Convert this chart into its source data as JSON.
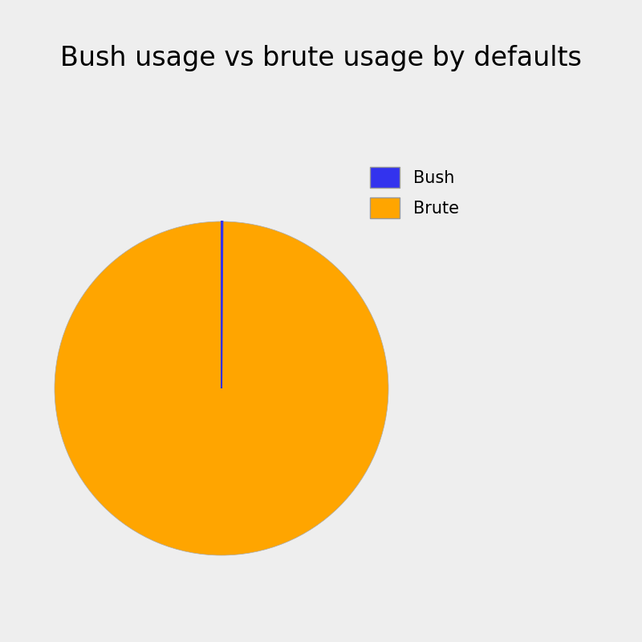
{
  "title": "Bush usage vs brute usage by defaults",
  "title_fontsize": 24,
  "slices": [
    "Brute",
    "Bush"
  ],
  "values": [
    99.9,
    0.1
  ],
  "colors": [
    "#FFA500",
    "#3333EE"
  ],
  "background_color": "#EEEEEE",
  "legend_labels": [
    "Bush",
    "Brute"
  ],
  "legend_colors": [
    "#3333EE",
    "#FFA500"
  ],
  "wedge_edgecolor_brute": "#AAAAAA",
  "wedge_edgecolor_bush": "#3333EE",
  "wedge_linewidth": 1.2
}
